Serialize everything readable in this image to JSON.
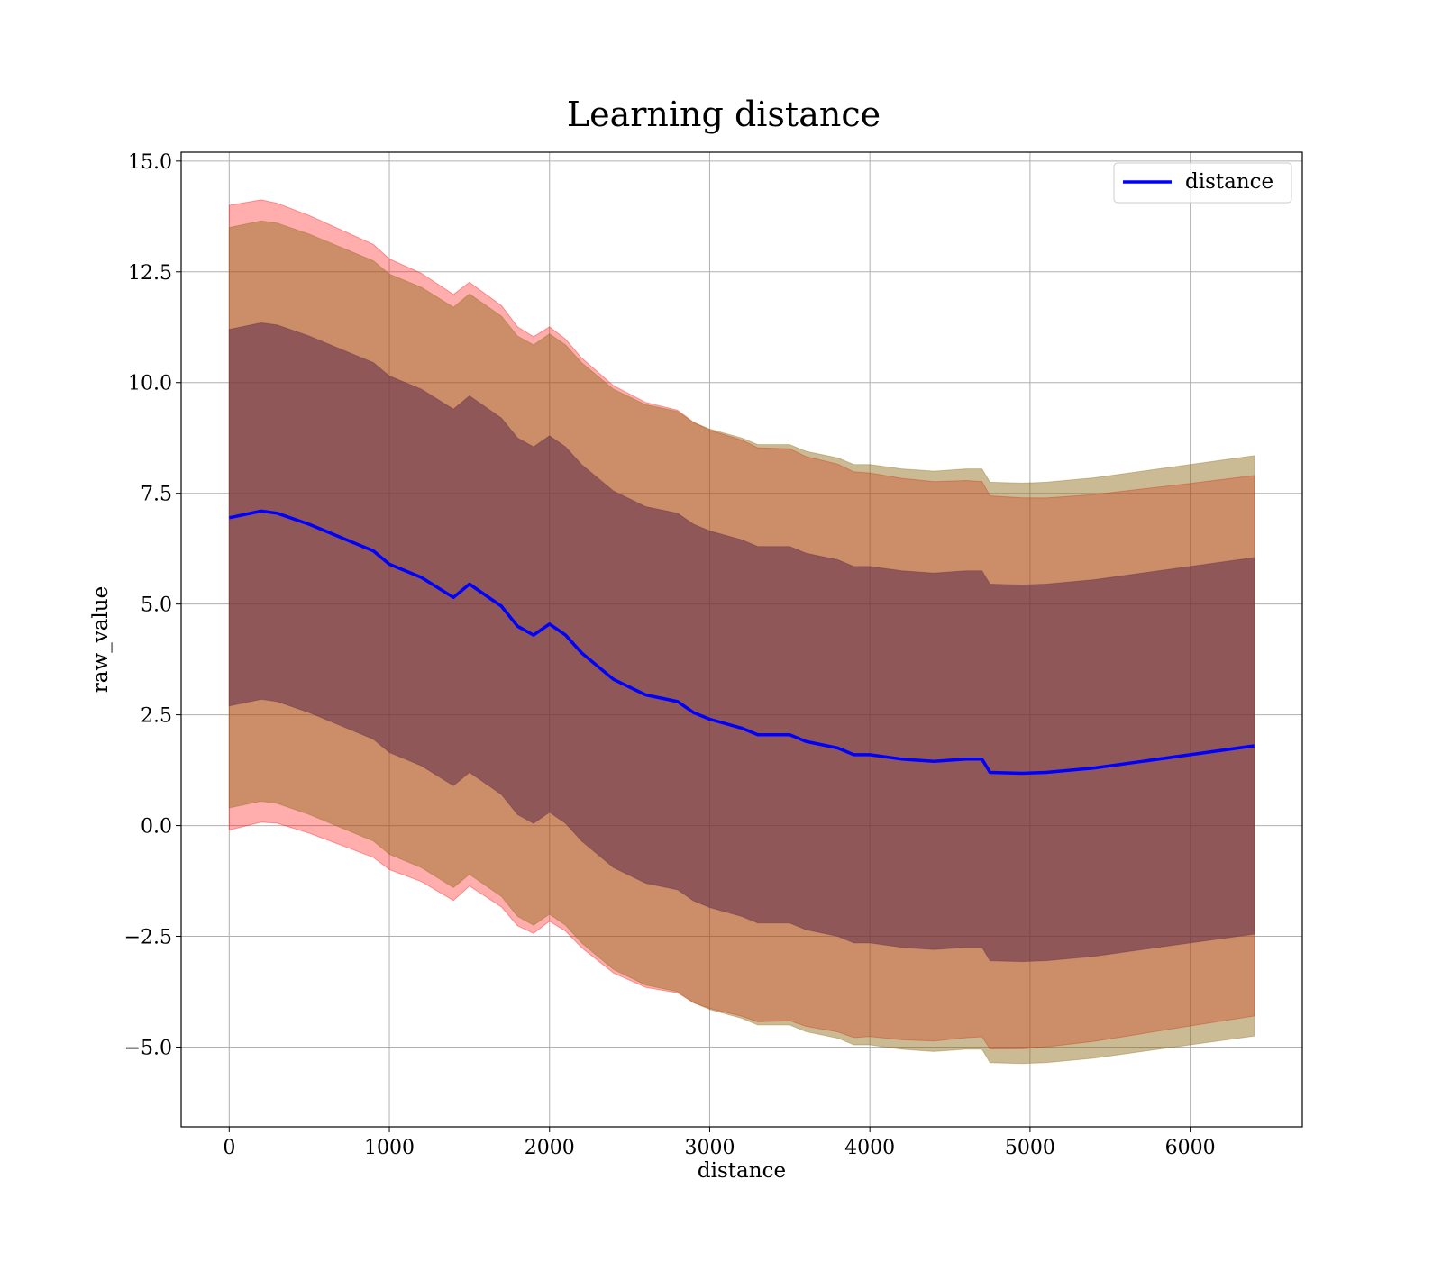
{
  "chart_data": {
    "type": "area",
    "title": "Learning distance",
    "xlabel": "distance",
    "ylabel": "raw_value",
    "xlim": [
      -300,
      6700
    ],
    "ylim": [
      -6.8,
      15.2
    ],
    "xticks": [
      0,
      1000,
      2000,
      3000,
      4000,
      5000,
      6000
    ],
    "xtick_labels": [
      "0",
      "1000",
      "2000",
      "3000",
      "4000",
      "5000",
      "6000"
    ],
    "yticks": [
      -5.0,
      -2.5,
      0.0,
      2.5,
      5.0,
      7.5,
      10.0,
      12.5,
      15.0
    ],
    "ytick_labels": [
      "−5.0",
      "−2.5",
      "0.0",
      "2.5",
      "5.0",
      "7.5",
      "10.0",
      "12.5",
      "15.0"
    ],
    "grid": true,
    "legend": {
      "position": "top-right",
      "entries": [
        "distance"
      ]
    },
    "colors": {
      "line": "#0000ff",
      "band_outer": "#ff0000",
      "band_middle": "#8b6914",
      "band_inner": "#5e2a4a"
    },
    "x": [
      0,
      200,
      300,
      500,
      700,
      900,
      1000,
      1200,
      1400,
      1500,
      1700,
      1800,
      1900,
      2000,
      2100,
      2200,
      2400,
      2600,
      2800,
      2900,
      3000,
      3200,
      3300,
      3500,
      3600,
      3800,
      3900,
      4000,
      4200,
      4400,
      4600,
      4700,
      4750,
      4950,
      5100,
      5400,
      5700,
      6000,
      6400
    ],
    "series": [
      {
        "name": "distance",
        "values": [
          6.95,
          7.1,
          7.05,
          6.8,
          6.5,
          6.2,
          5.9,
          5.6,
          5.15,
          5.45,
          4.95,
          4.5,
          4.3,
          4.55,
          4.3,
          3.9,
          3.3,
          2.95,
          2.8,
          2.55,
          2.4,
          2.2,
          2.05,
          2.05,
          1.9,
          1.75,
          1.6,
          1.6,
          1.5,
          1.45,
          1.5,
          1.5,
          1.2,
          1.18,
          1.2,
          1.3,
          1.45,
          1.6,
          1.8
        ]
      }
    ]
  }
}
